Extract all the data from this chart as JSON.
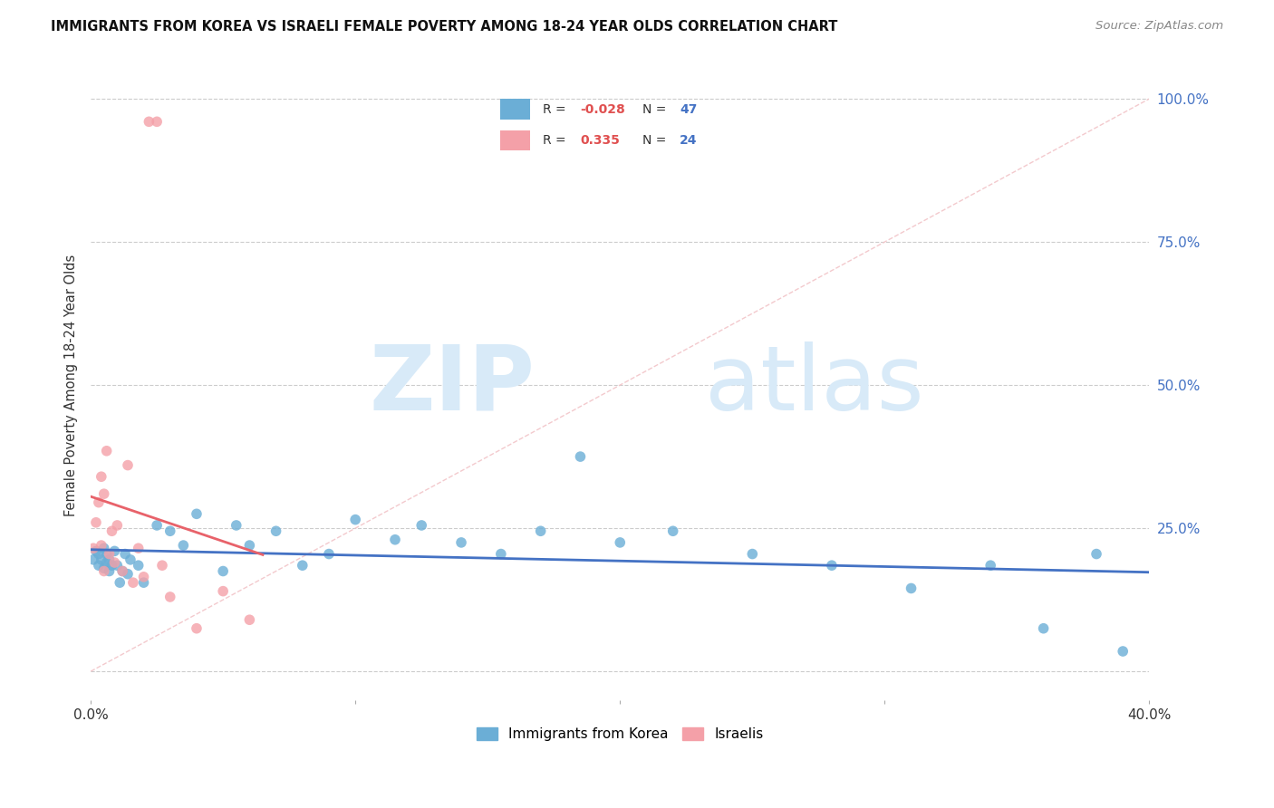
{
  "title": "IMMIGRANTS FROM KOREA VS ISRAELI FEMALE POVERTY AMONG 18-24 YEAR OLDS CORRELATION CHART",
  "source": "Source: ZipAtlas.com",
  "ylabel": "Female Poverty Among 18-24 Year Olds",
  "y_ticks": [
    0.0,
    0.25,
    0.5,
    0.75,
    1.0
  ],
  "y_tick_labels": [
    "",
    "25.0%",
    "50.0%",
    "75.0%",
    "100.0%"
  ],
  "xlim": [
    0.0,
    0.4
  ],
  "ylim": [
    -0.05,
    1.05
  ],
  "korea_color": "#6baed6",
  "israel_color": "#f4a0a8",
  "korea_line_color": "#4472c4",
  "israel_line_color": "#e8626a",
  "diagonal_color": "#f2c4c8",
  "watermark_zip": "ZIP",
  "watermark_atlas": "atlas",
  "watermark_color": "#d8eaf8",
  "background_color": "#ffffff",
  "korea_R": "-0.028",
  "korea_N": "47",
  "israel_R": "0.335",
  "israel_N": "24",
  "korea_label": "Immigrants from Korea",
  "israel_label": "Israelis",
  "korea_x": [
    0.001,
    0.002,
    0.003,
    0.003,
    0.004,
    0.005,
    0.005,
    0.006,
    0.006,
    0.007,
    0.007,
    0.008,
    0.009,
    0.01,
    0.011,
    0.012,
    0.013,
    0.014,
    0.015,
    0.018,
    0.02,
    0.025,
    0.03,
    0.035,
    0.04,
    0.05,
    0.055,
    0.06,
    0.07,
    0.08,
    0.09,
    0.1,
    0.115,
    0.125,
    0.14,
    0.155,
    0.17,
    0.185,
    0.2,
    0.22,
    0.25,
    0.28,
    0.31,
    0.34,
    0.36,
    0.38,
    0.39
  ],
  "korea_y": [
    0.195,
    0.21,
    0.185,
    0.205,
    0.195,
    0.18,
    0.215,
    0.19,
    0.205,
    0.175,
    0.195,
    0.185,
    0.21,
    0.185,
    0.155,
    0.175,
    0.205,
    0.17,
    0.195,
    0.185,
    0.155,
    0.255,
    0.245,
    0.22,
    0.275,
    0.175,
    0.255,
    0.22,
    0.245,
    0.185,
    0.205,
    0.265,
    0.23,
    0.255,
    0.225,
    0.205,
    0.245,
    0.375,
    0.225,
    0.245,
    0.205,
    0.185,
    0.145,
    0.185,
    0.075,
    0.205,
    0.035
  ],
  "israel_x": [
    0.001,
    0.002,
    0.003,
    0.004,
    0.004,
    0.005,
    0.005,
    0.006,
    0.007,
    0.008,
    0.009,
    0.01,
    0.012,
    0.014,
    0.016,
    0.018,
    0.02,
    0.022,
    0.025,
    0.027,
    0.03,
    0.04,
    0.05,
    0.06
  ],
  "israel_y": [
    0.215,
    0.26,
    0.295,
    0.34,
    0.22,
    0.31,
    0.175,
    0.385,
    0.205,
    0.245,
    0.19,
    0.255,
    0.175,
    0.36,
    0.155,
    0.215,
    0.165,
    0.96,
    0.96,
    0.185,
    0.13,
    0.075,
    0.14,
    0.09
  ]
}
